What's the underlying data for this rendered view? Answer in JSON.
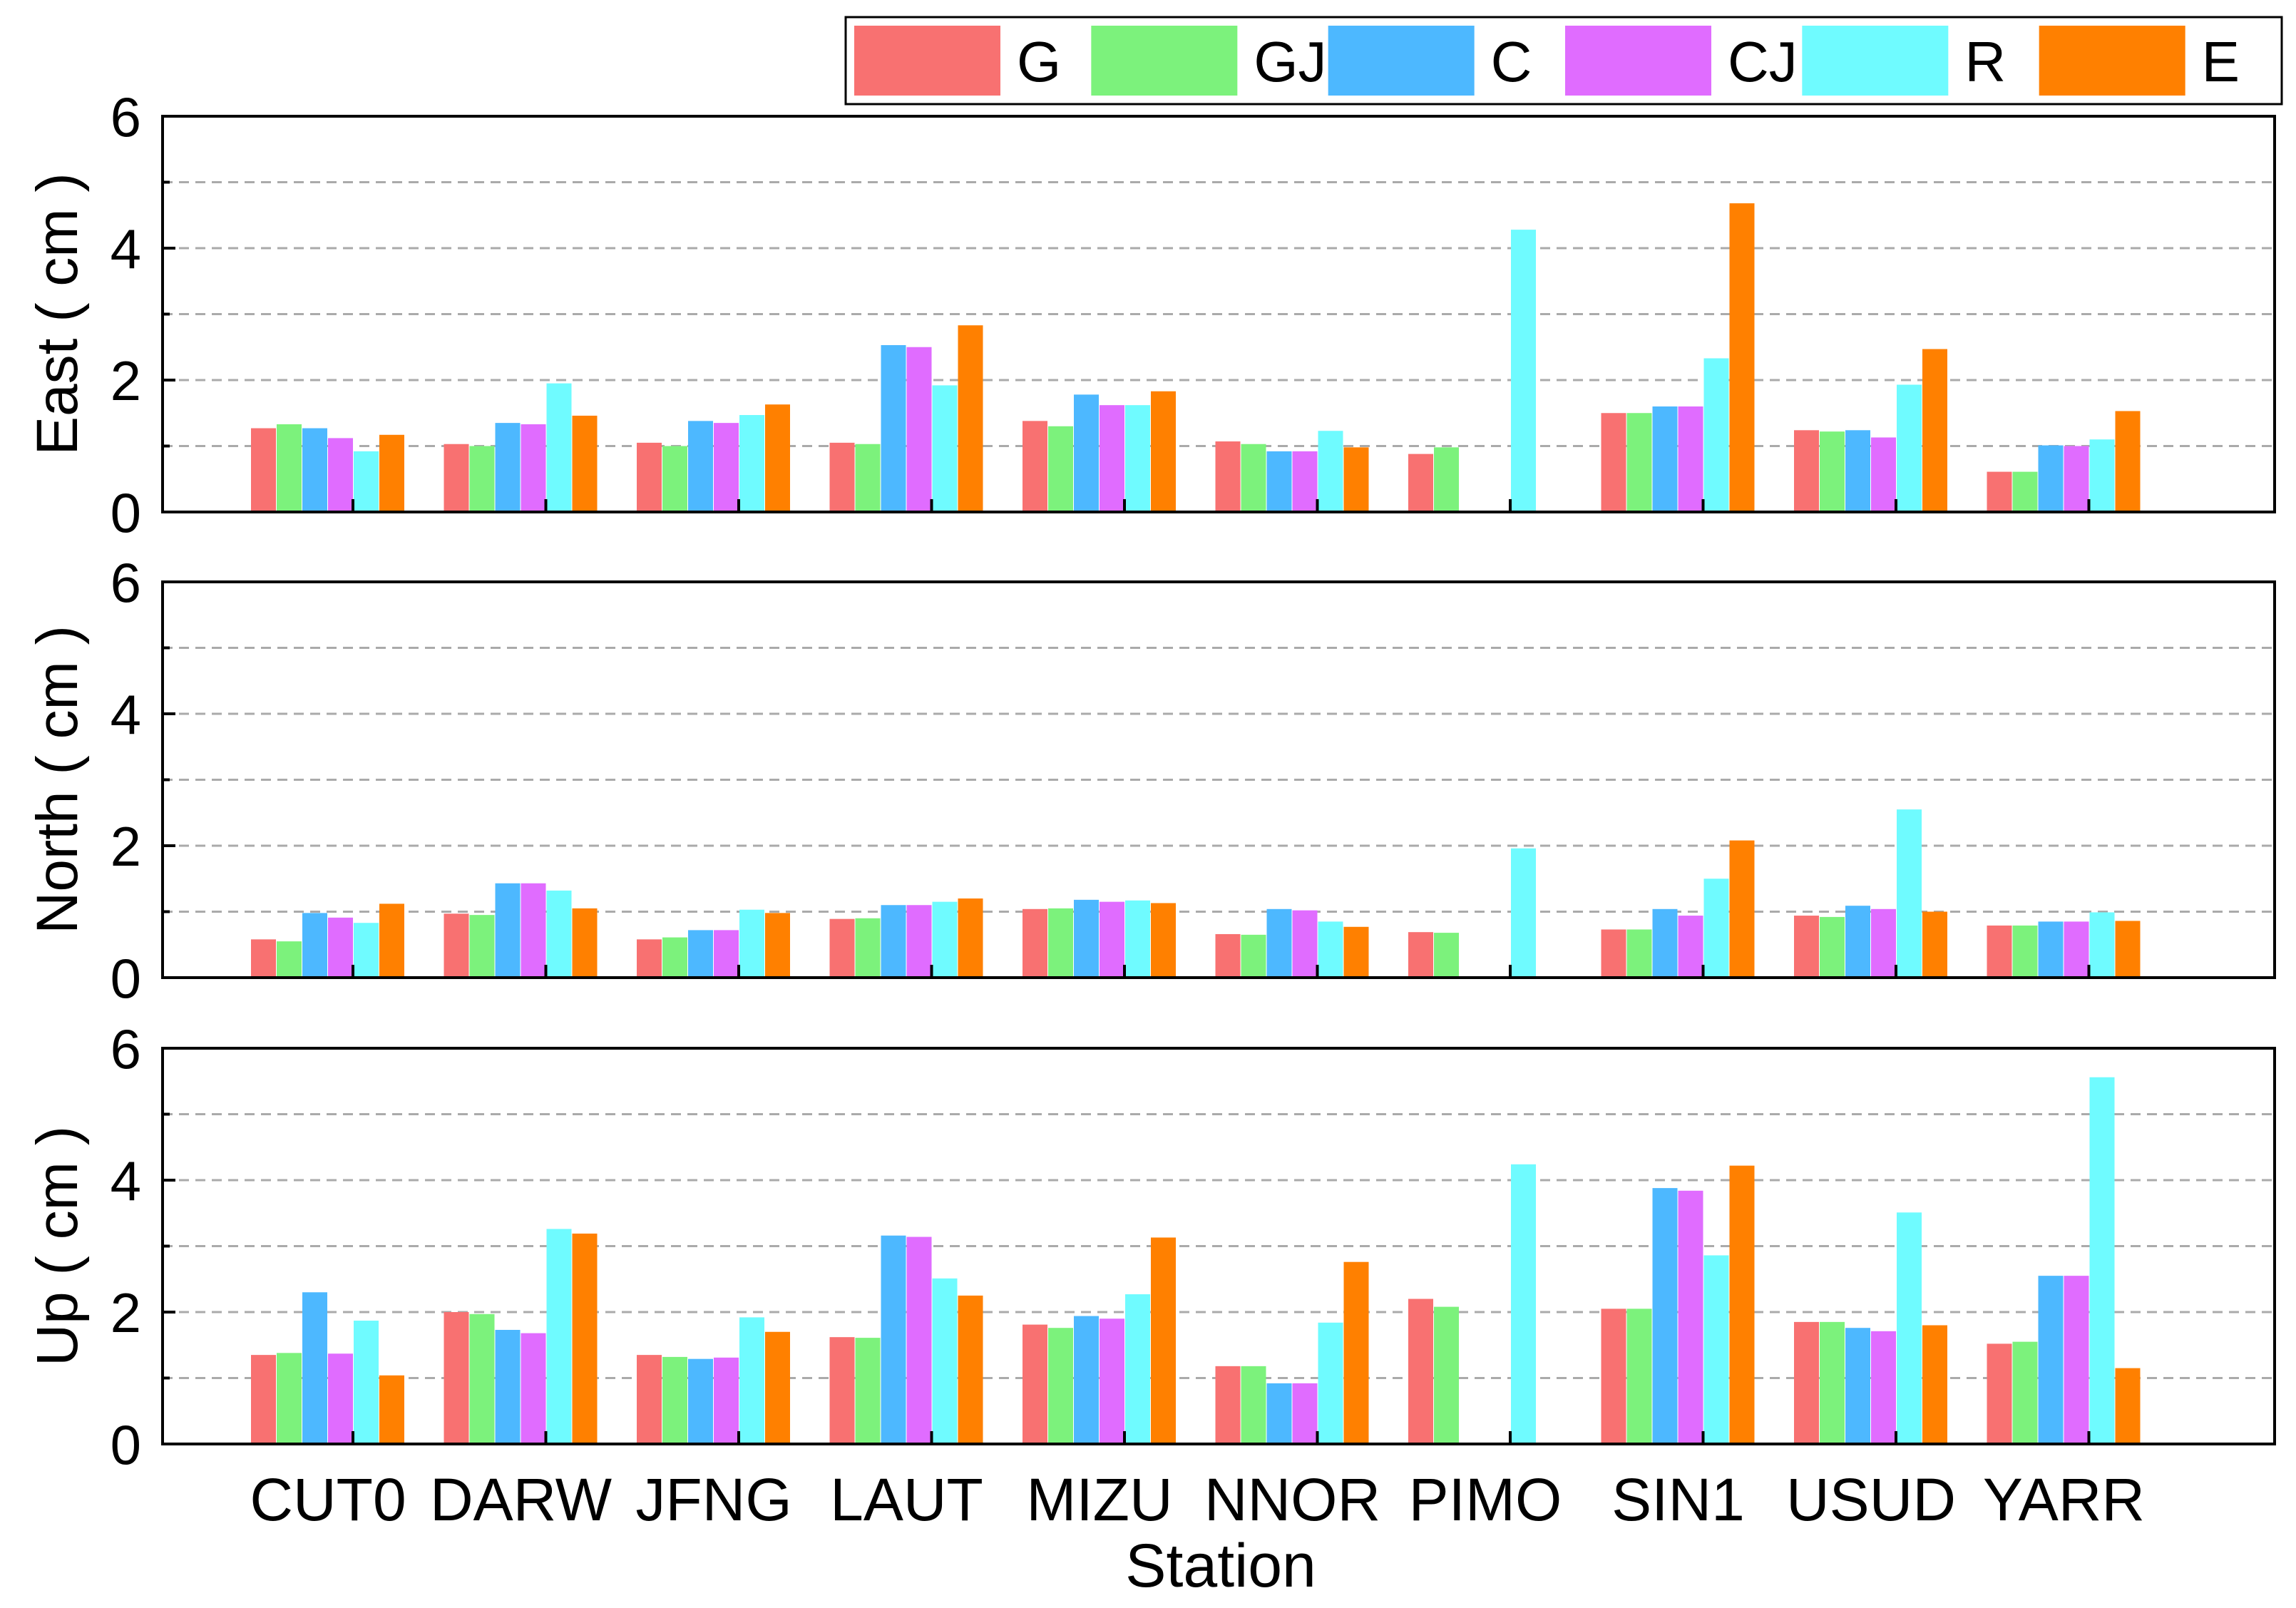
{
  "chart_data": {
    "type": "bar",
    "layout": "three vertically stacked panels sharing the x axis",
    "legend": {
      "placement": "top-right",
      "series_names": [
        "G",
        "GJ",
        "C",
        "CJ",
        "R",
        "E"
      ]
    },
    "colors": {
      "G": "#F87171",
      "GJ": "#7CF27C",
      "C": "#4DB8FF",
      "CJ": "#E06CFF",
      "R": "#6FFBFF",
      "E": "#FF8000",
      "grid": "#AAAAAA",
      "axis": "#000000"
    },
    "xlabel": "Station",
    "categories": [
      "CUT0",
      "DARW",
      "JFNG",
      "LAUT",
      "MIZU",
      "NNOR",
      "PIMO",
      "SIN1",
      "USUD",
      "YARR"
    ],
    "grid": "horizontal dashed",
    "panels": [
      {
        "ylabel": "East ( cm )",
        "ylim": [
          0,
          6
        ],
        "yticks": [
          "0",
          "2",
          "4",
          "6"
        ],
        "series": [
          {
            "name": "G",
            "values": [
              1.27,
              1.03,
              1.05,
              1.05,
              1.38,
              1.07,
              0.88,
              1.5,
              1.24,
              0.61
            ]
          },
          {
            "name": "GJ",
            "values": [
              1.33,
              1.0,
              1.0,
              1.03,
              1.3,
              1.03,
              0.98,
              1.5,
              1.22,
              0.61
            ]
          },
          {
            "name": "C",
            "values": [
              1.27,
              1.35,
              1.38,
              2.53,
              1.78,
              0.92,
              null,
              1.6,
              1.24,
              1.01
            ]
          },
          {
            "name": "CJ",
            "values": [
              1.12,
              1.33,
              1.35,
              2.5,
              1.62,
              0.92,
              null,
              1.6,
              1.13,
              1.0
            ]
          },
          {
            "name": "R",
            "values": [
              0.92,
              1.95,
              1.47,
              1.92,
              1.62,
              1.23,
              4.28,
              2.33,
              1.93,
              1.1
            ]
          },
          {
            "name": "E",
            "values": [
              1.17,
              1.46,
              1.63,
              2.83,
              1.83,
              0.98,
              null,
              4.68,
              2.47,
              1.53
            ]
          }
        ]
      },
      {
        "ylabel": "North ( cm )",
        "ylim": [
          0,
          6
        ],
        "yticks": [
          "0",
          "2",
          "4",
          "6"
        ],
        "series": [
          {
            "name": "G",
            "values": [
              0.58,
              0.97,
              0.58,
              0.89,
              1.04,
              0.66,
              0.69,
              0.73,
              0.94,
              0.79
            ]
          },
          {
            "name": "GJ",
            "values": [
              0.55,
              0.95,
              0.61,
              0.9,
              1.05,
              0.65,
              0.68,
              0.73,
              0.92,
              0.79
            ]
          },
          {
            "name": "C",
            "values": [
              0.98,
              1.43,
              0.72,
              1.1,
              1.18,
              1.04,
              null,
              1.04,
              1.09,
              0.85
            ]
          },
          {
            "name": "CJ",
            "values": [
              0.91,
              1.43,
              0.72,
              1.1,
              1.15,
              1.02,
              null,
              0.94,
              1.04,
              0.85
            ]
          },
          {
            "name": "R",
            "values": [
              0.83,
              1.32,
              1.03,
              1.15,
              1.17,
              0.85,
              1.96,
              1.5,
              2.55,
              0.99
            ]
          },
          {
            "name": "E",
            "values": [
              1.12,
              1.05,
              0.98,
              1.2,
              1.13,
              0.77,
              null,
              2.08,
              1.0,
              0.86
            ]
          }
        ]
      },
      {
        "ylabel": "Up ( cm )",
        "ylim": [
          0,
          6
        ],
        "yticks": [
          "0",
          "2",
          "4",
          "6"
        ],
        "series": [
          {
            "name": "G",
            "values": [
              1.35,
              2.0,
              1.35,
              1.62,
              1.81,
              1.18,
              2.2,
              2.05,
              1.85,
              1.52
            ]
          },
          {
            "name": "GJ",
            "values": [
              1.38,
              1.97,
              1.32,
              1.61,
              1.76,
              1.18,
              2.08,
              2.05,
              1.85,
              1.55
            ]
          },
          {
            "name": "C",
            "values": [
              2.3,
              1.73,
              1.29,
              3.16,
              1.94,
              0.92,
              null,
              3.88,
              1.76,
              2.55
            ]
          },
          {
            "name": "CJ",
            "values": [
              1.37,
              1.68,
              1.31,
              3.14,
              1.9,
              0.92,
              null,
              3.84,
              1.71,
              2.55
            ]
          },
          {
            "name": "R",
            "values": [
              1.87,
              3.26,
              1.92,
              2.51,
              2.27,
              1.84,
              4.24,
              2.86,
              3.51,
              5.56
            ]
          },
          {
            "name": "E",
            "values": [
              1.04,
              3.19,
              1.7,
              2.25,
              3.13,
              2.76,
              null,
              4.22,
              1.8,
              1.15
            ]
          }
        ]
      }
    ]
  }
}
